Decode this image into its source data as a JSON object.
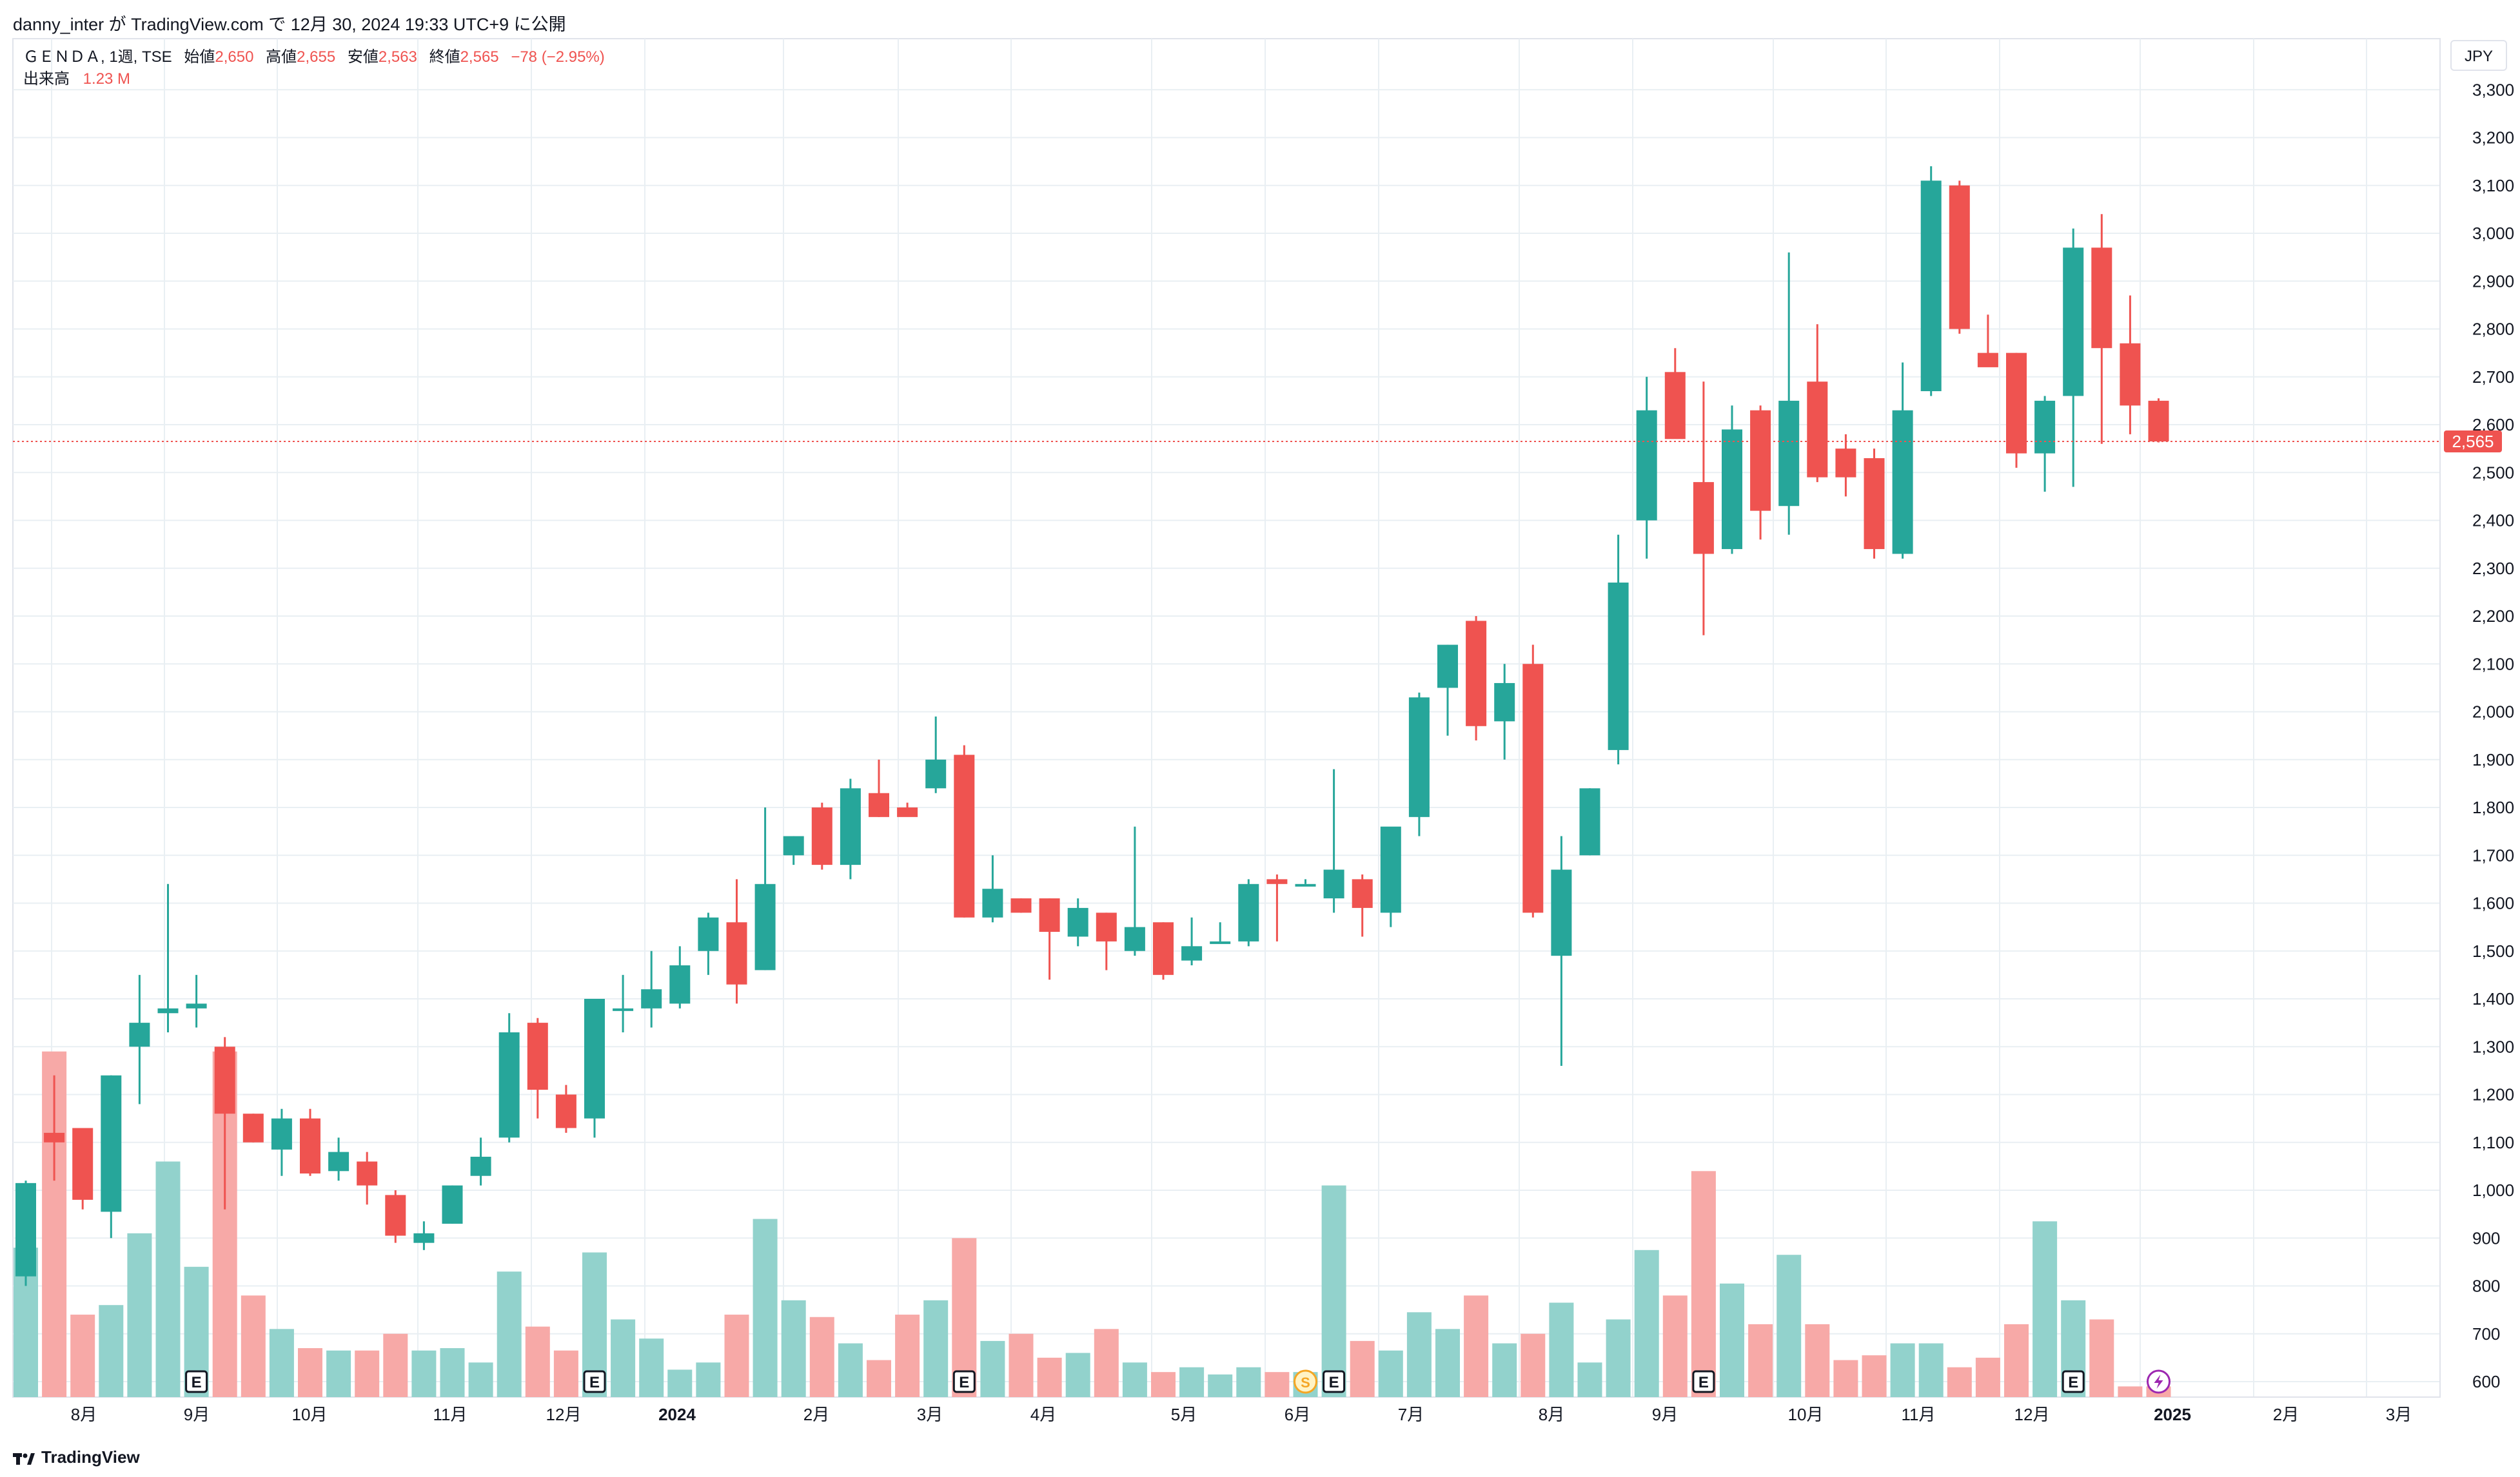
{
  "header": {
    "publish_line": "danny_inter が TradingView.com で 12月 30, 2024 19:33 UTC+9 に公開"
  },
  "legend": {
    "symbol": "ＧＥＮＤＡ, 1週, TSE",
    "open_label": "始値",
    "open_value": "2,650",
    "high_label": "高値",
    "high_value": "2,655",
    "low_label": "安値",
    "low_value": "2,563",
    "close_label": "終値",
    "close_value": "2,565",
    "change": "−78 (−2.95%)",
    "volume_label": "出来高",
    "volume_value": "1.23 M"
  },
  "currency": "JPY",
  "footer": {
    "brand": "TradingView"
  },
  "colors": {
    "up": "#26a69a",
    "down": "#ef5350",
    "up_volume": "#92d2cc",
    "down_volume": "#f7a9a7",
    "grid": "#e9eff3",
    "price_line": "#ef5350"
  },
  "chart_data": {
    "type": "candlestick",
    "symbol": "ＧＥＮＤＡ",
    "interval": "1週",
    "exchange": "TSE",
    "currency": "JPY",
    "y_ticks": [
      "600",
      "700",
      "800",
      "900",
      "1,000",
      "1,100",
      "1,200",
      "1,300",
      "1,400",
      "1,500",
      "1,600",
      "1,700",
      "1,800",
      "1,900",
      "2,000",
      "2,100",
      "2,200",
      "2,300",
      "2,400",
      "2,500",
      "2,600",
      "2,700",
      "2,800",
      "2,900",
      "3,000",
      "3,100",
      "3,200",
      "3,300"
    ],
    "y_range": [
      560,
      3370
    ],
    "last_price": "2,565",
    "x_labels": [
      {
        "label": "8月",
        "bold": false
      },
      {
        "label": "9月",
        "bold": false
      },
      {
        "label": "10月",
        "bold": false
      },
      {
        "label": "11月",
        "bold": false
      },
      {
        "label": "12月",
        "bold": false
      },
      {
        "label": "2024",
        "bold": true
      },
      {
        "label": "2月",
        "bold": false
      },
      {
        "label": "3月",
        "bold": false
      },
      {
        "label": "4月",
        "bold": false
      },
      {
        "label": "5月",
        "bold": false
      },
      {
        "label": "6月",
        "bold": false
      },
      {
        "label": "7月",
        "bold": false
      },
      {
        "label": "8月",
        "bold": false
      },
      {
        "label": "9月",
        "bold": false
      },
      {
        "label": "10月",
        "bold": false
      },
      {
        "label": "11月",
        "bold": false
      },
      {
        "label": "12月",
        "bold": false
      },
      {
        "label": "2025",
        "bold": true
      },
      {
        "label": "2月",
        "bold": false
      },
      {
        "label": "3月",
        "bold": false
      }
    ],
    "candles": [
      [
        820,
        1020,
        800,
        1015,
        880
      ],
      [
        1120,
        1240,
        1020,
        1100,
        1290
      ],
      [
        1130,
        1130,
        960,
        980,
        740
      ],
      [
        955,
        1240,
        900,
        1240,
        760
      ],
      [
        1300,
        1450,
        1180,
        1350,
        910
      ],
      [
        1370,
        1640,
        1330,
        1380,
        1060
      ],
      [
        1380,
        1450,
        1340,
        1390,
        840
      ],
      [
        1300,
        1320,
        960,
        1160,
        1290
      ],
      [
        1160,
        1160,
        1100,
        1100,
        780
      ],
      [
        1085,
        1170,
        1030,
        1150,
        710
      ],
      [
        1150,
        1170,
        1030,
        1035,
        670
      ],
      [
        1040,
        1110,
        1020,
        1080,
        665
      ],
      [
        1060,
        1080,
        970,
        1010,
        665
      ],
      [
        990,
        1000,
        890,
        905,
        700
      ],
      [
        890,
        935,
        875,
        910,
        665
      ],
      [
        930,
        1010,
        930,
        1010,
        670
      ],
      [
        1030,
        1110,
        1010,
        1070,
        640
      ],
      [
        1110,
        1370,
        1100,
        1330,
        830
      ],
      [
        1350,
        1360,
        1150,
        1210,
        715
      ],
      [
        1200,
        1220,
        1120,
        1130,
        665
      ],
      [
        1150,
        1400,
        1110,
        1400,
        870
      ],
      [
        1380,
        1450,
        1330,
        1380,
        730
      ],
      [
        1380,
        1500,
        1340,
        1420,
        690
      ],
      [
        1390,
        1510,
        1380,
        1470,
        625
      ],
      [
        1500,
        1580,
        1450,
        1570,
        640
      ],
      [
        1560,
        1650,
        1390,
        1430,
        740
      ],
      [
        1460,
        1800,
        1460,
        1640,
        940
      ],
      [
        1700,
        1740,
        1680,
        1740,
        770
      ],
      [
        1800,
        1810,
        1670,
        1680,
        735
      ],
      [
        1680,
        1860,
        1650,
        1840,
        680
      ],
      [
        1830,
        1900,
        1780,
        1780,
        645
      ],
      [
        1800,
        1810,
        1790,
        1780,
        740
      ],
      [
        1840,
        1990,
        1830,
        1900,
        770
      ],
      [
        1910,
        1930,
        1570,
        1570,
        900
      ],
      [
        1570,
        1700,
        1560,
        1630,
        685
      ],
      [
        1610,
        1610,
        1580,
        1580,
        700
      ],
      [
        1610,
        1610,
        1440,
        1540,
        650
      ],
      [
        1530,
        1610,
        1510,
        1590,
        660
      ],
      [
        1580,
        1580,
        1460,
        1520,
        710
      ],
      [
        1500,
        1760,
        1490,
        1550,
        640
      ],
      [
        1560,
        1560,
        1440,
        1450,
        620
      ],
      [
        1480,
        1570,
        1470,
        1510,
        630
      ],
      [
        1520,
        1560,
        1520,
        1520,
        615
      ],
      [
        1520,
        1650,
        1510,
        1640,
        630
      ],
      [
        1650,
        1660,
        1520,
        1640,
        620
      ],
      [
        1640,
        1650,
        1640,
        1640,
        620
      ],
      [
        1610,
        1880,
        1580,
        1670,
        1010
      ],
      [
        1650,
        1660,
        1530,
        1590,
        685
      ],
      [
        1580,
        1740,
        1550,
        1760,
        665
      ],
      [
        1780,
        2040,
        1740,
        2030,
        745
      ],
      [
        2050,
        2140,
        1950,
        2140,
        710
      ],
      [
        2190,
        2200,
        1940,
        1970,
        780
      ],
      [
        1980,
        2100,
        1900,
        2060,
        680
      ],
      [
        2100,
        2140,
        1570,
        1580,
        700
      ],
      [
        1490,
        1740,
        1260,
        1670,
        765
      ],
      [
        1700,
        1840,
        1700,
        1840,
        640
      ],
      [
        1920,
        2370,
        1890,
        2270,
        730
      ],
      [
        2400,
        2700,
        2320,
        2630,
        875
      ],
      [
        2710,
        2760,
        2580,
        2570,
        780
      ],
      [
        2480,
        2690,
        2160,
        2330,
        1040
      ],
      [
        2340,
        2640,
        2330,
        2590,
        805
      ],
      [
        2630,
        2640,
        2360,
        2420,
        720
      ],
      [
        2430,
        2960,
        2370,
        2650,
        865
      ],
      [
        2690,
        2810,
        2480,
        2490,
        720
      ],
      [
        2550,
        2580,
        2450,
        2490,
        645
      ],
      [
        2530,
        2550,
        2320,
        2340,
        655
      ],
      [
        2330,
        2730,
        2320,
        2630,
        680
      ],
      [
        2670,
        3140,
        2660,
        3110,
        680
      ],
      [
        3100,
        3110,
        2790,
        2800,
        630
      ],
      [
        2750,
        2830,
        2730,
        2720,
        650
      ],
      [
        2750,
        2750,
        2510,
        2540,
        720
      ],
      [
        2540,
        2660,
        2460,
        2650,
        935
      ],
      [
        2660,
        3010,
        2470,
        2970,
        770
      ],
      [
        2970,
        3040,
        2560,
        2760,
        730
      ],
      [
        2770,
        2870,
        2580,
        2640,
        590
      ],
      [
        2650,
        2655,
        2563,
        2565,
        590
      ]
    ],
    "candle_fields": [
      "open",
      "high",
      "low",
      "close",
      "volume_axis_level"
    ],
    "volume": {
      "label": "出来高",
      "last": "1.23 M"
    },
    "event_markers": [
      {
        "type": "E",
        "bar": 6
      },
      {
        "type": "E",
        "bar": 20
      },
      {
        "type": "E",
        "bar": 33
      },
      {
        "type": "S",
        "bar": 45
      },
      {
        "type": "E",
        "bar": 46
      },
      {
        "type": "E",
        "bar": 59
      },
      {
        "type": "E",
        "bar": 72
      },
      {
        "type": "flash",
        "bar": 75
      }
    ],
    "grid": true,
    "legend_position": "top-left"
  }
}
